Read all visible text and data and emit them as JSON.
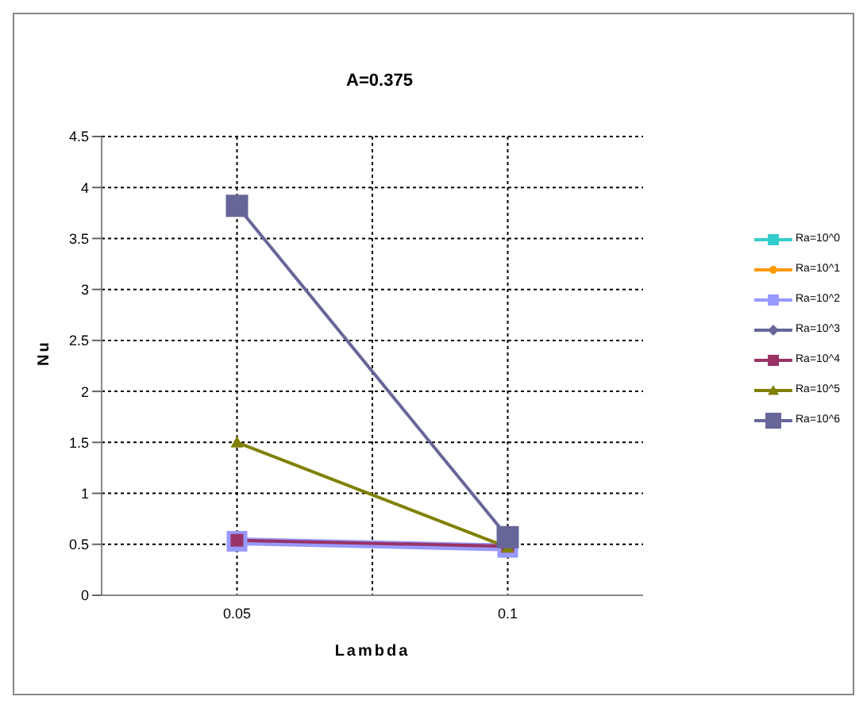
{
  "chart_data": {
    "type": "line",
    "title": "A=0.375",
    "xlabel": "Lambda",
    "ylabel": "Nu",
    "categories": [
      "0.05",
      "0.1"
    ],
    "ylim": [
      0,
      4.5
    ],
    "yticks": [
      0,
      0.5,
      1,
      1.5,
      2,
      2.5,
      3,
      3.5,
      4,
      4.5
    ],
    "grid": true,
    "legend": "right",
    "series": [
      {
        "name": "Ra=10^0",
        "color": "#33cccc",
        "marker": "square",
        "values": [
          null,
          null
        ]
      },
      {
        "name": "Ra=10^1",
        "color": "#ff9900",
        "marker": "circle",
        "values": [
          null,
          null
        ]
      },
      {
        "name": "Ra=10^2",
        "color": "#9999ff",
        "marker": "square",
        "values": [
          0.53,
          0.47
        ]
      },
      {
        "name": "Ra=10^3",
        "color": "#666699",
        "marker": "diamond",
        "values": [
          null,
          null
        ]
      },
      {
        "name": "Ra=10^4",
        "color": "#993366",
        "marker": "square",
        "values": [
          0.54,
          0.48
        ]
      },
      {
        "name": "Ra=10^5",
        "color": "#808000",
        "marker": "triangle",
        "values": [
          1.5,
          0.47
        ]
      },
      {
        "name": "Ra=10^6",
        "color": "#666699",
        "marker": "square",
        "values": [
          3.82,
          0.57
        ]
      }
    ]
  }
}
